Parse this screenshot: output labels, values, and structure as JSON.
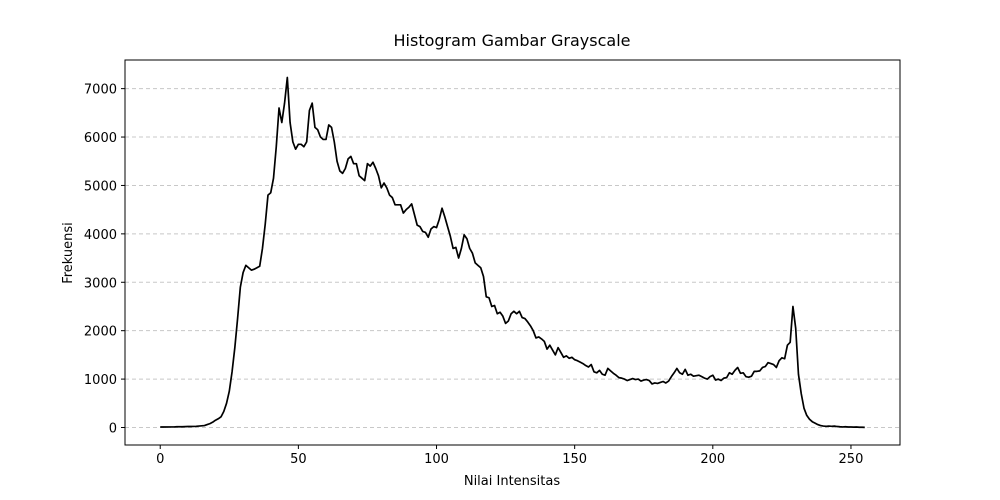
{
  "chart_data": {
    "type": "line",
    "title": "Histogram Gambar Grayscale",
    "x_label": "Nilai Intensitas",
    "y_label": "Frekuensi",
    "x": [
      0,
      1,
      2,
      3,
      4,
      5,
      6,
      7,
      8,
      9,
      10,
      11,
      12,
      13,
      14,
      15,
      16,
      17,
      18,
      19,
      20,
      21,
      22,
      23,
      24,
      25,
      26,
      27,
      28,
      29,
      30,
      31,
      32,
      33,
      34,
      35,
      36,
      37,
      38,
      39,
      40,
      41,
      42,
      43,
      44,
      45,
      46,
      47,
      48,
      49,
      50,
      51,
      52,
      53,
      54,
      55,
      56,
      57,
      58,
      59,
      60,
      61,
      62,
      63,
      64,
      65,
      66,
      67,
      68,
      69,
      70,
      71,
      72,
      73,
      74,
      75,
      76,
      77,
      78,
      79,
      80,
      81,
      82,
      83,
      84,
      85,
      86,
      87,
      88,
      89,
      90,
      91,
      92,
      93,
      94,
      95,
      96,
      97,
      98,
      99,
      100,
      101,
      102,
      103,
      104,
      105,
      106,
      107,
      108,
      109,
      110,
      111,
      112,
      113,
      114,
      115,
      116,
      117,
      118,
      119,
      120,
      121,
      122,
      123,
      124,
      125,
      126,
      127,
      128,
      129,
      130,
      131,
      132,
      133,
      134,
      135,
      136,
      137,
      138,
      139,
      140,
      141,
      142,
      143,
      144,
      145,
      146,
      147,
      148,
      149,
      150,
      151,
      152,
      153,
      154,
      155,
      156,
      157,
      158,
      159,
      160,
      161,
      162,
      163,
      164,
      165,
      166,
      167,
      168,
      169,
      170,
      171,
      172,
      173,
      174,
      175,
      176,
      177,
      178,
      179,
      180,
      181,
      182,
      183,
      184,
      185,
      186,
      187,
      188,
      189,
      190,
      191,
      192,
      193,
      194,
      195,
      196,
      197,
      198,
      199,
      200,
      201,
      202,
      203,
      204,
      205,
      206,
      207,
      208,
      209,
      210,
      211,
      212,
      213,
      214,
      215,
      216,
      217,
      218,
      219,
      220,
      221,
      222,
      223,
      224,
      225,
      226,
      227,
      228,
      229,
      230,
      231,
      232,
      233,
      234,
      235,
      236,
      237,
      238,
      239,
      240,
      241,
      242,
      243,
      244,
      245,
      246,
      247,
      248,
      249,
      250,
      251,
      252,
      253,
      254,
      255
    ],
    "series": [
      {
        "color": "#000000",
        "values": [
          10,
          10,
          10,
          12,
          12,
          12,
          15,
          15,
          15,
          18,
          20,
          20,
          22,
          25,
          30,
          35,
          40,
          60,
          80,
          110,
          150,
          180,
          220,
          330,
          500,
          750,
          1150,
          1650,
          2250,
          2900,
          3200,
          3350,
          3300,
          3250,
          3270,
          3300,
          3330,
          3700,
          4200,
          4800,
          4850,
          5150,
          5800,
          6600,
          6300,
          6700,
          7230,
          6300,
          5900,
          5750,
          5850,
          5850,
          5800,
          5900,
          6550,
          6700,
          6200,
          6150,
          6000,
          5950,
          5950,
          6250,
          6200,
          5900,
          5500,
          5300,
          5250,
          5350,
          5550,
          5600,
          5450,
          5450,
          5200,
          5150,
          5100,
          5450,
          5400,
          5480,
          5350,
          5200,
          4950,
          5050,
          4950,
          4800,
          4750,
          4600,
          4600,
          4600,
          4430,
          4500,
          4550,
          4620,
          4400,
          4180,
          4150,
          4050,
          4030,
          3930,
          4100,
          4150,
          4130,
          4300,
          4530,
          4350,
          4150,
          3950,
          3700,
          3720,
          3500,
          3700,
          3980,
          3900,
          3700,
          3600,
          3400,
          3350,
          3300,
          3120,
          2700,
          2680,
          2500,
          2520,
          2350,
          2380,
          2300,
          2150,
          2200,
          2350,
          2400,
          2350,
          2400,
          2270,
          2250,
          2180,
          2100,
          2000,
          1850,
          1870,
          1830,
          1780,
          1620,
          1700,
          1600,
          1500,
          1650,
          1550,
          1450,
          1480,
          1430,
          1450,
          1400,
          1380,
          1350,
          1320,
          1280,
          1250,
          1300,
          1150,
          1130,
          1180,
          1100,
          1080,
          1220,
          1170,
          1120,
          1080,
          1030,
          1020,
          1000,
          970,
          990,
          1010,
          990,
          1000,
          960,
          980,
          990,
          970,
          900,
          920,
          910,
          930,
          950,
          920,
          960,
          1050,
          1130,
          1220,
          1130,
          1100,
          1200,
          1080,
          1100,
          1060,
          1070,
          1080,
          1050,
          1020,
          1000,
          1050,
          1080,
          980,
          1000,
          970,
          1020,
          1030,
          1130,
          1100,
          1180,
          1240,
          1120,
          1130,
          1050,
          1040,
          1060,
          1160,
          1160,
          1170,
          1240,
          1260,
          1340,
          1320,
          1300,
          1240,
          1380,
          1440,
          1420,
          1700,
          1760,
          2500,
          2050,
          1100,
          700,
          400,
          250,
          170,
          120,
          90,
          60,
          40,
          30,
          25,
          30,
          25,
          30,
          20,
          15,
          12,
          15,
          10,
          10,
          8,
          10,
          5,
          5,
          3
        ]
      }
    ],
    "xlim": [
      -12.75,
      267.75
    ],
    "ylim": [
      -361.5,
      7591.5
    ],
    "xticks": [
      0,
      50,
      100,
      150,
      200,
      250
    ],
    "yticks": [
      0,
      1000,
      2000,
      3000,
      4000,
      5000,
      6000,
      7000
    ],
    "grid": "y"
  }
}
